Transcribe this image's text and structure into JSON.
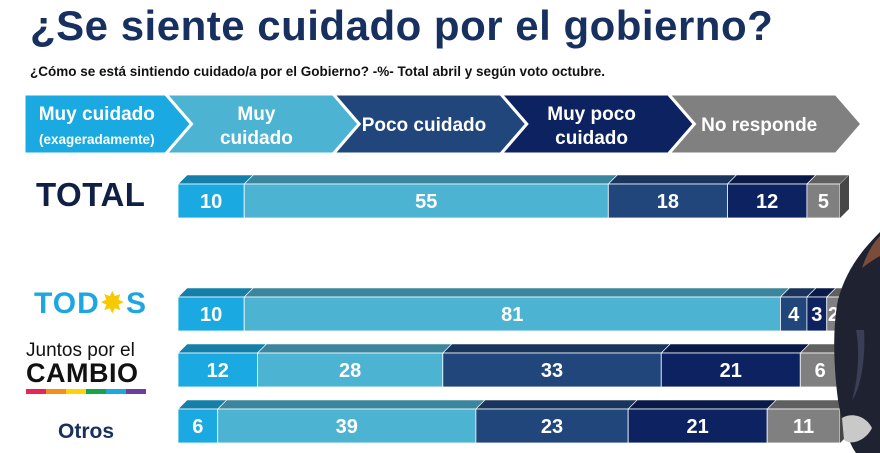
{
  "title": "¿Se siente cuidado por el gobierno?",
  "subtitle": "¿Cómo se está sintiendo cuidado/a por el Gobierno? -%- Total abril y según voto octubre.",
  "chart_data": {
    "type": "bar",
    "stacked": true,
    "orientation": "horizontal",
    "title": "¿Se siente cuidado por el gobierno?",
    "subtitle": "¿Cómo se está sintiendo cuidado/a por el Gobierno? -%- Total abril y según voto octubre.",
    "unit": "%",
    "legend": [
      {
        "lines": [
          "Muy cuidado",
          "(exageradamente)"
        ],
        "color": "#1ba9e1"
      },
      {
        "lines": [
          "Muy",
          "cuidado"
        ],
        "color": "#4db3d2"
      },
      {
        "lines": [
          "Poco cuidado"
        ],
        "color": "#21467c"
      },
      {
        "lines": [
          "Muy poco",
          "cuidado"
        ],
        "color": "#0d2260"
      },
      {
        "lines": [
          "No responde"
        ],
        "color": "#808080"
      }
    ],
    "categories": [
      "TOTAL",
      "TODOS",
      "Juntos por el CAMBIO",
      "Otros"
    ],
    "series": [
      {
        "name": "Muy cuidado (exageradamente)",
        "values": [
          10,
          10,
          12,
          6
        ]
      },
      {
        "name": "Muy cuidado",
        "values": [
          55,
          81,
          28,
          39
        ]
      },
      {
        "name": "Poco cuidado",
        "values": [
          18,
          4,
          33,
          23
        ]
      },
      {
        "name": "Muy poco cuidado",
        "values": [
          12,
          3,
          21,
          21
        ]
      },
      {
        "name": "No responde",
        "values": [
          5,
          2,
          6,
          11
        ]
      }
    ]
  },
  "labels": {
    "total": "TOTAL",
    "todos_a": "TOD",
    "todos_sun": "✸",
    "todos_b": "S",
    "jxc_line1": "Juntos por el",
    "jxc_line2": "CAMBIO",
    "otros": "Otros"
  },
  "colors": {
    "stripe": [
      "#e7255a",
      "#f28e1c",
      "#ffd400",
      "#16a34a",
      "#1ba9e1",
      "#6b3fa0"
    ]
  }
}
